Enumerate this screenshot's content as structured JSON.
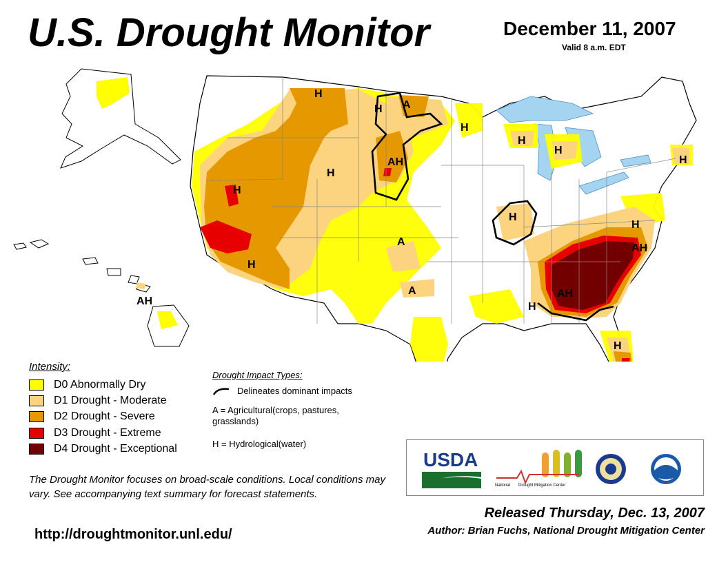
{
  "header": {
    "title": "U.S. Drought Monitor",
    "date": "December 11, 2007",
    "valid": "Valid 8 a.m. EDT"
  },
  "colors": {
    "d0": "#ffff00",
    "d1": "#fcd37f",
    "d2": "#e69800",
    "d3": "#e60000",
    "d4": "#730000",
    "water": "#a5d4f0"
  },
  "legend": {
    "heading": "Intensity:",
    "items": [
      {
        "code": "d0",
        "label": "D0 Abnormally Dry"
      },
      {
        "code": "d1",
        "label": "D1 Drought - Moderate"
      },
      {
        "code": "d2",
        "label": "D2 Drought - Severe"
      },
      {
        "code": "d3",
        "label": "D3 Drought - Extreme"
      },
      {
        "code": "d4",
        "label": "D4 Drought - Exceptional"
      }
    ]
  },
  "impacts": {
    "heading": "Drought Impact Types:",
    "line": "Delineates dominant impacts",
    "agricultural": "A = Agricultural(crops, pastures, grasslands)",
    "hydrological": "H = Hydrological(water)"
  },
  "map_labels": {
    "h": "H",
    "a": "A",
    "ah": "AH"
  },
  "note": "The Drought Monitor focuses on broad-scale conditions. Local conditions may vary. See accompanying text summary for forecast statements.",
  "url": "http://droughtmonitor.unl.edu/",
  "released": "Released Thursday, Dec. 13, 2007",
  "author": "Author: Brian Fuchs, National Drought Mitigation Center",
  "logos": {
    "usda": "USDA",
    "ndmc_prefix": "National",
    "ndmc_name": "Drought Mitigation Center"
  }
}
